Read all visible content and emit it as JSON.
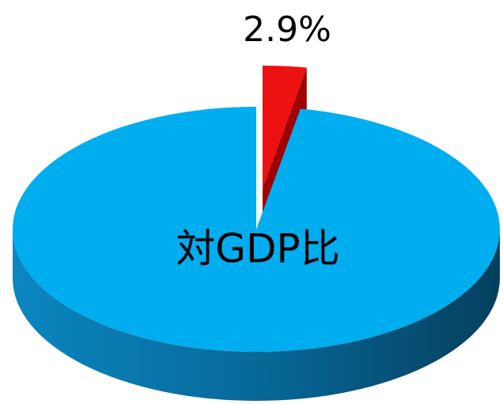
{
  "chart_data": {
    "type": "pie",
    "label": "対GDP比",
    "values": [
      2.9,
      97.1
    ],
    "value_labels": [
      "2.9%",
      null
    ],
    "colors": [
      "#ee1111",
      "#00adef"
    ],
    "side_colors": [
      "#a00000",
      "#0a6fa0"
    ],
    "exploded": [
      true,
      false
    ]
  }
}
